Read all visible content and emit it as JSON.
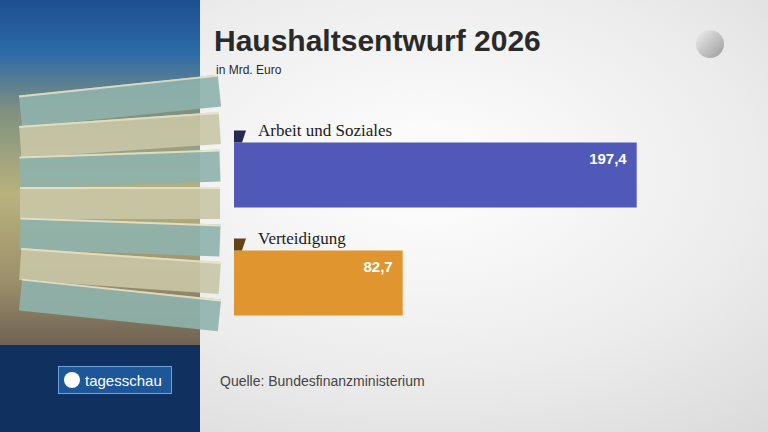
{
  "chart_data": {
    "type": "bar",
    "orientation": "horizontal",
    "title": "Haushaltsentwurf 2026",
    "subtitle": "in Mrd. Euro",
    "categories": [
      "Arbeit und Soziales",
      "Verteidigung"
    ],
    "values": [
      197.4,
      82.7
    ],
    "value_labels": [
      "197,4",
      "82,7"
    ],
    "colors": [
      "#5058b8",
      "#e0952e"
    ],
    "xlim": [
      0,
      200
    ],
    "data_labels": true,
    "tick_labels": false,
    "grid": false,
    "annotations": [
      "Quelle: Bundesfinanzministerium",
      "tagesschau"
    ]
  }
}
